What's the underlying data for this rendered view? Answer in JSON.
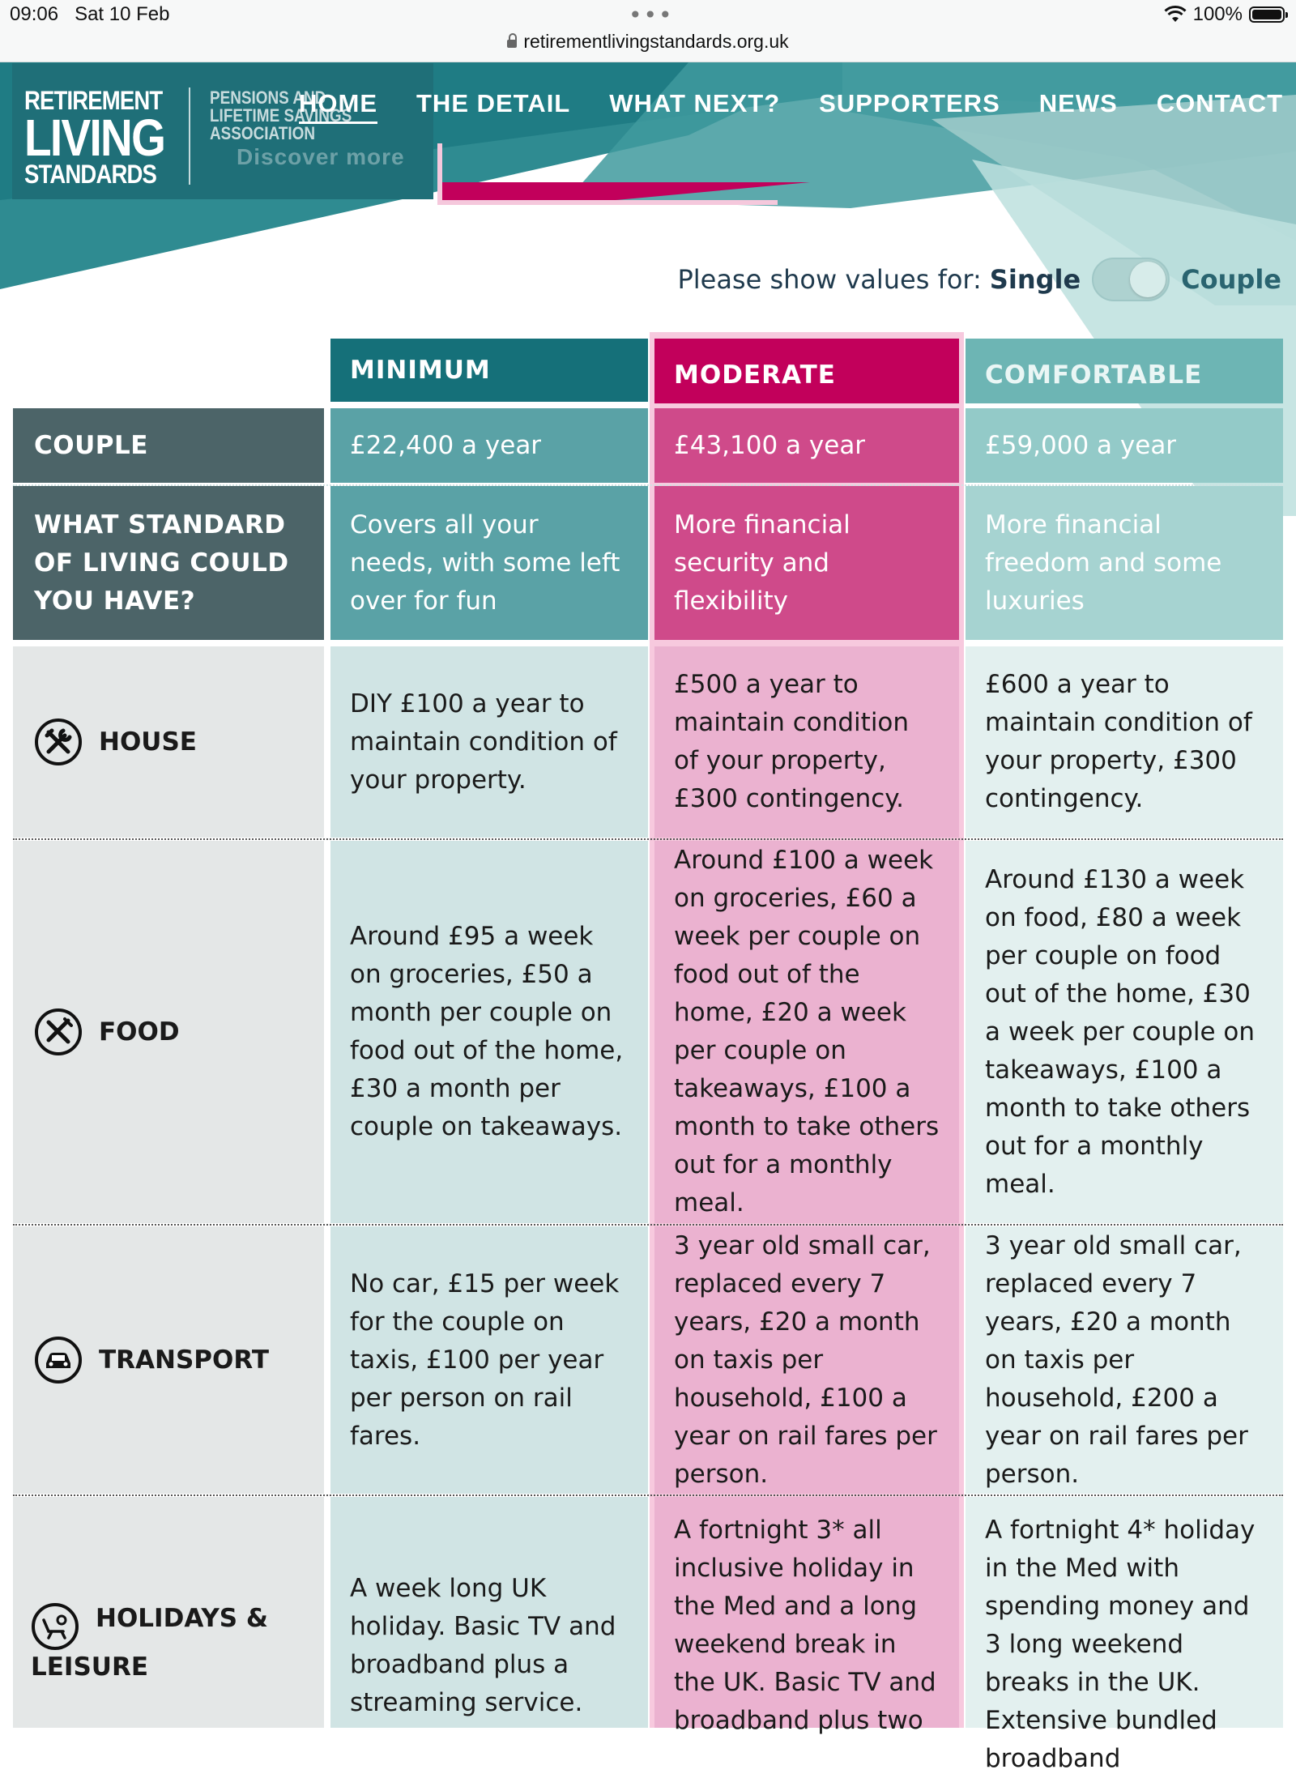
{
  "status_bar": {
    "time": "09:06",
    "date": "Sat 10 Feb",
    "dots": "•••",
    "battery": "100%"
  },
  "browser": {
    "url": "retirementlivingstandards.org.uk"
  },
  "logo": {
    "line1": "RETIREMENT",
    "line2": "LIVING",
    "line3": "STANDARDS",
    "sub1": "PENSIONS AND",
    "sub2": "LIFETIME SAVINGS",
    "sub3": "ASSOCIATION"
  },
  "hero": {
    "discover": "Discover more"
  },
  "nav": [
    {
      "label": "HOME"
    },
    {
      "label": "THE DETAIL"
    },
    {
      "label": "WHAT NEXT?"
    },
    {
      "label": "SUPPORTERS"
    },
    {
      "label": "NEWS"
    },
    {
      "label": "CONTACT"
    }
  ],
  "toggle": {
    "prompt": "Please show values for:",
    "single": "Single",
    "couple": "Couple"
  },
  "colors": {
    "teal_dark": "#157079",
    "magenta": "#c2005b",
    "teal_light": "#6db5b4"
  },
  "table": {
    "columns": [
      "MINIMUM",
      "MODERATE",
      "COMFORTABLE"
    ],
    "couple_label": "COUPLE",
    "couple_values": [
      "£22,400 a year",
      "£43,100 a year",
      "£59,000 a year"
    ],
    "standard_label": "WHAT STANDARD OF LIVING COULD YOU HAVE?",
    "standard_values": [
      "Covers all your needs, with some left over for fun",
      "More financial security and flexibility",
      "More financial freedom and some luxuries"
    ],
    "rows": [
      {
        "icon": "tools-icon",
        "label": "HOUSE",
        "values": [
          "DIY £100 a year to maintain condition of your property.",
          "£500 a year to maintain condition of your property, £300 contingency.",
          "£600 a year to maintain condition of your property, £300 contingency."
        ]
      },
      {
        "icon": "fork-knife-icon",
        "label": "FOOD",
        "values": [
          "Around £95 a week on groceries, £50 a month per couple on food out of the home, £30 a month per couple on takeaways.",
          "Around £100 a week on groceries, £60 a week per couple on food out of the home, £20 a week per couple on takeaways, £100 a month to take others out for a monthly meal.",
          "Around £130 a week on food, £80 a week per couple on food out of the home, £30 a week per couple on takeaways, £100 a month to take others out for a monthly meal."
        ]
      },
      {
        "icon": "car-icon",
        "label": "TRANSPORT",
        "values": [
          "No car, £15 per week for the couple on taxis, £100 per year per person on rail fares.",
          "3 year old small car, replaced every 7 years, £20 a month on taxis per household, £100 a year on rail fares per person.",
          "3 year old small car, replaced every 7 years, £20 a month on taxis per household, £200 a year on rail fares per person."
        ]
      },
      {
        "icon": "beach-chair-icon",
        "label": "HOLIDAYS & LEISURE",
        "values": [
          "A week long UK holiday. Basic TV and broadband plus a streaming service.",
          "A fortnight 3* all inclusive holiday in the Med and a long weekend break in the UK. Basic TV and broadband plus two",
          "A fortnight 4* holiday in the Med with spending money and 3 long weekend breaks in the UK. Extensive bundled broadband"
        ]
      }
    ]
  }
}
